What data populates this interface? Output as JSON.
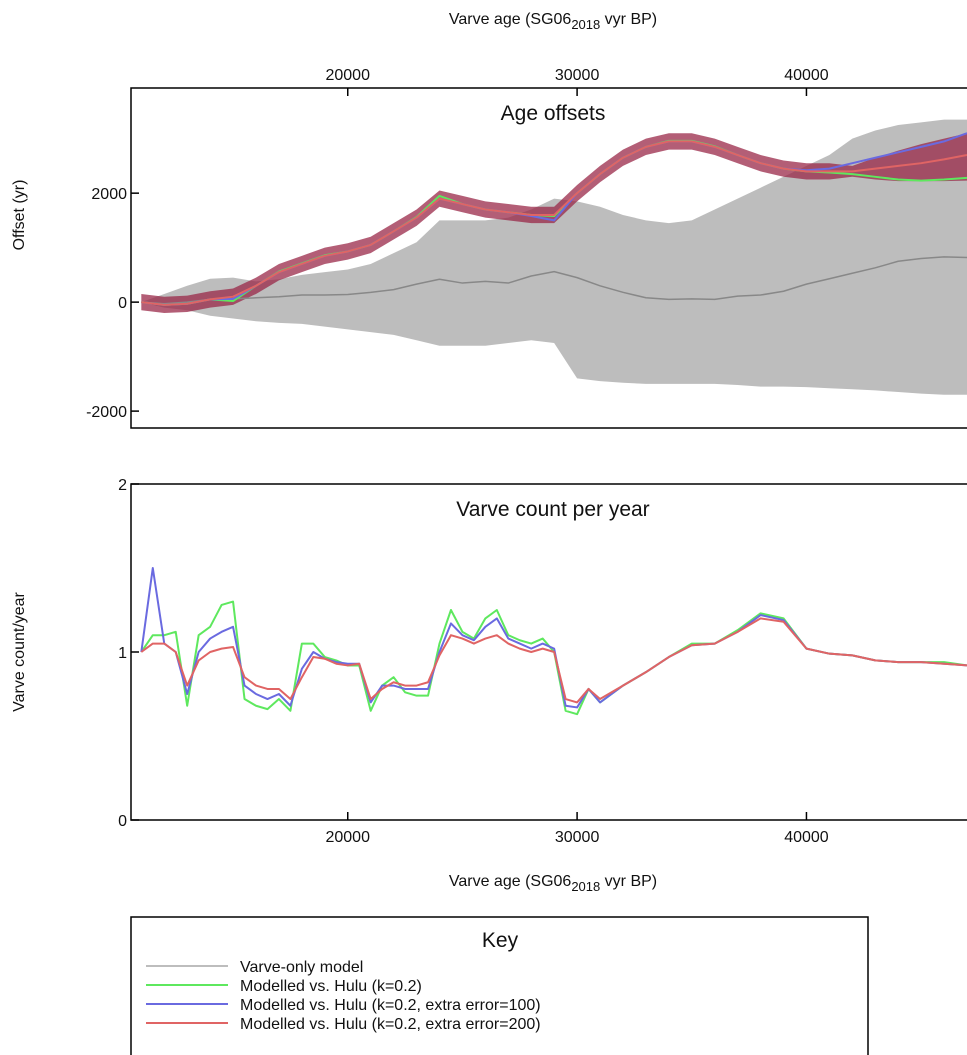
{
  "key_title": "Key",
  "chart_data": [
    {
      "type": "line",
      "title": "Age offsets",
      "xaxis": "top",
      "xlabel": {
        "text": "Varve age (SG06",
        "sub": "2018",
        "tail": " vyr BP)"
      },
      "ylabel": "Offset (yr)",
      "xlim": [
        10550,
        47000
      ],
      "xticks": [
        20000,
        30000,
        40000
      ],
      "ylim": [
        -2310,
        3930
      ],
      "yticks": [
        -2000,
        0,
        2000
      ],
      "x": [
        11000,
        12000,
        13000,
        14000,
        15000,
        16000,
        17000,
        18000,
        19000,
        20000,
        21000,
        22000,
        23000,
        24000,
        25000,
        26000,
        27000,
        28000,
        29000,
        30000,
        31000,
        32000,
        33000,
        34000,
        35000,
        36000,
        37000,
        38000,
        39000,
        40000,
        41000,
        42000,
        43000,
        44000,
        45000,
        46000,
        47000
      ],
      "series": [
        {
          "name": "Varve-only model",
          "color": "#bdbdbd",
          "line_color": "#888888",
          "values": [
            0,
            -30,
            0,
            50,
            60,
            80,
            100,
            130,
            130,
            140,
            180,
            230,
            330,
            420,
            350,
            380,
            350,
            480,
            560,
            450,
            300,
            180,
            80,
            50,
            60,
            50,
            110,
            130,
            200,
            330,
            430,
            530,
            630,
            750,
            800,
            830,
            820
          ],
          "lower": [
            0,
            -100,
            -150,
            -250,
            -300,
            -350,
            -380,
            -400,
            -450,
            -500,
            -550,
            -600,
            -700,
            -800,
            -800,
            -800,
            -750,
            -700,
            -750,
            -1400,
            -1450,
            -1480,
            -1500,
            -1500,
            -1500,
            -1500,
            -1520,
            -1550,
            -1550,
            -1560,
            -1580,
            -1600,
            -1620,
            -1650,
            -1680,
            -1700,
            -1700
          ],
          "upper": [
            0,
            150,
            300,
            430,
            450,
            380,
            420,
            500,
            550,
            600,
            700,
            900,
            1100,
            1500,
            1500,
            1500,
            1550,
            1700,
            1900,
            1850,
            1750,
            1600,
            1500,
            1450,
            1500,
            1700,
            1900,
            2100,
            2300,
            2500,
            2700,
            3000,
            3150,
            3250,
            3300,
            3350,
            3350
          ]
        },
        {
          "name": "Modelled vs. Hulu (k=0.2)",
          "color": "#5ee85e",
          "values": [
            0,
            -50,
            -30,
            50,
            20,
            300,
            560,
            710,
            860,
            930,
            1050,
            1300,
            1560,
            1950,
            1800,
            1700,
            1650,
            1600,
            1580,
            2000,
            2350,
            2650,
            2850,
            2960,
            2960,
            2860,
            2700,
            2550,
            2450,
            2400,
            2380,
            2350,
            2300,
            2250,
            2230,
            2250,
            2280
          ]
        },
        {
          "name": "Modelled vs. Hulu (k=0.2, extra error=100)",
          "color": "#6a6ae0",
          "values": [
            0,
            -50,
            -30,
            50,
            60,
            300,
            550,
            700,
            850,
            930,
            1050,
            1300,
            1550,
            1900,
            1800,
            1700,
            1650,
            1580,
            1500,
            2000,
            2350,
            2650,
            2850,
            2950,
            2950,
            2850,
            2700,
            2550,
            2450,
            2420,
            2450,
            2550,
            2650,
            2750,
            2850,
            2950,
            3100
          ]
        },
        {
          "name": "Modelled vs. Hulu (k=0.2, extra error=200)",
          "color": "#e06464",
          "band_color": "#9a2848",
          "values": [
            0,
            -50,
            -30,
            50,
            100,
            300,
            550,
            700,
            850,
            930,
            1050,
            1300,
            1550,
            1900,
            1800,
            1700,
            1650,
            1600,
            1600,
            2000,
            2350,
            2650,
            2850,
            2950,
            2950,
            2850,
            2700,
            2550,
            2450,
            2400,
            2400,
            2400,
            2450,
            2500,
            2550,
            2620,
            2700
          ],
          "lower": [
            -150,
            -200,
            -180,
            -100,
            -50,
            150,
            400,
            550,
            700,
            780,
            900,
            1150,
            1400,
            1750,
            1650,
            1550,
            1500,
            1450,
            1450,
            1850,
            2200,
            2500,
            2700,
            2800,
            2800,
            2700,
            2550,
            2400,
            2300,
            2250,
            2250,
            2300,
            2250,
            2220,
            2220,
            2220,
            2230
          ],
          "upper": [
            150,
            100,
            120,
            200,
            250,
            450,
            700,
            850,
            1000,
            1080,
            1200,
            1450,
            1700,
            2050,
            1950,
            1850,
            1800,
            1750,
            1750,
            2150,
            2500,
            2800,
            3000,
            3100,
            3100,
            3000,
            2850,
            2700,
            2600,
            2550,
            2550,
            2500,
            2650,
            2780,
            2900,
            3000,
            3100
          ]
        }
      ]
    },
    {
      "type": "line",
      "title": "Varve count per year",
      "xaxis": "bottom",
      "xlabel": {
        "text": "Varve age (SG06",
        "sub": "2018",
        "tail": " vyr BP)"
      },
      "ylabel": "Varve count/year",
      "xlim": [
        10550,
        47000
      ],
      "xticks": [
        20000,
        30000,
        40000
      ],
      "ylim": [
        0,
        2
      ],
      "yticks": [
        0,
        1,
        2
      ],
      "x": [
        11000,
        11500,
        12000,
        12500,
        13000,
        13500,
        14000,
        14500,
        15000,
        15500,
        16000,
        16500,
        17000,
        17500,
        18000,
        18500,
        19000,
        19500,
        20000,
        20500,
        21000,
        21500,
        22000,
        22500,
        23000,
        23500,
        24000,
        24500,
        25000,
        25500,
        26000,
        26500,
        27000,
        27500,
        28000,
        28500,
        29000,
        29500,
        30000,
        30500,
        31000,
        32000,
        33000,
        34000,
        35000,
        36000,
        37000,
        38000,
        39000,
        40000,
        41000,
        42000,
        43000,
        44000,
        45000,
        46000,
        47000
      ],
      "series": [
        {
          "color": "#5ee85e",
          "values": [
            1.0,
            1.1,
            1.1,
            1.12,
            0.68,
            1.1,
            1.15,
            1.28,
            1.3,
            0.72,
            0.68,
            0.66,
            0.72,
            0.65,
            1.05,
            1.05,
            0.97,
            0.95,
            0.92,
            0.92,
            0.65,
            0.8,
            0.85,
            0.76,
            0.74,
            0.74,
            1.05,
            1.25,
            1.12,
            1.08,
            1.2,
            1.25,
            1.1,
            1.07,
            1.05,
            1.08,
            1.0,
            0.65,
            0.63,
            0.78,
            0.7,
            0.8,
            0.88,
            0.97,
            1.05,
            1.05,
            1.13,
            1.23,
            1.2,
            1.02,
            0.99,
            0.98,
            0.95,
            0.94,
            0.94,
            0.94,
            0.92
          ]
        },
        {
          "color": "#6a6ae0",
          "values": [
            1.0,
            1.5,
            1.05,
            1.0,
            0.75,
            1.0,
            1.08,
            1.12,
            1.15,
            0.8,
            0.75,
            0.72,
            0.75,
            0.68,
            0.9,
            1.0,
            0.96,
            0.94,
            0.93,
            0.93,
            0.7,
            0.8,
            0.8,
            0.78,
            0.78,
            0.78,
            1.0,
            1.17,
            1.1,
            1.07,
            1.15,
            1.2,
            1.08,
            1.05,
            1.02,
            1.05,
            1.02,
            0.68,
            0.67,
            0.78,
            0.7,
            0.8,
            0.88,
            0.97,
            1.04,
            1.05,
            1.12,
            1.22,
            1.19,
            1.02,
            0.99,
            0.98,
            0.95,
            0.94,
            0.94,
            0.93,
            0.92
          ]
        },
        {
          "color": "#e06464",
          "values": [
            1.0,
            1.05,
            1.05,
            1.0,
            0.8,
            0.95,
            1.0,
            1.02,
            1.03,
            0.85,
            0.8,
            0.78,
            0.78,
            0.72,
            0.85,
            0.97,
            0.96,
            0.93,
            0.92,
            0.93,
            0.72,
            0.78,
            0.82,
            0.8,
            0.8,
            0.82,
            0.98,
            1.1,
            1.08,
            1.05,
            1.08,
            1.1,
            1.05,
            1.02,
            1.0,
            1.02,
            1.0,
            0.72,
            0.7,
            0.78,
            0.72,
            0.8,
            0.88,
            0.97,
            1.04,
            1.05,
            1.12,
            1.2,
            1.18,
            1.02,
            0.99,
            0.98,
            0.95,
            0.94,
            0.94,
            0.93,
            0.92
          ]
        }
      ]
    }
  ]
}
